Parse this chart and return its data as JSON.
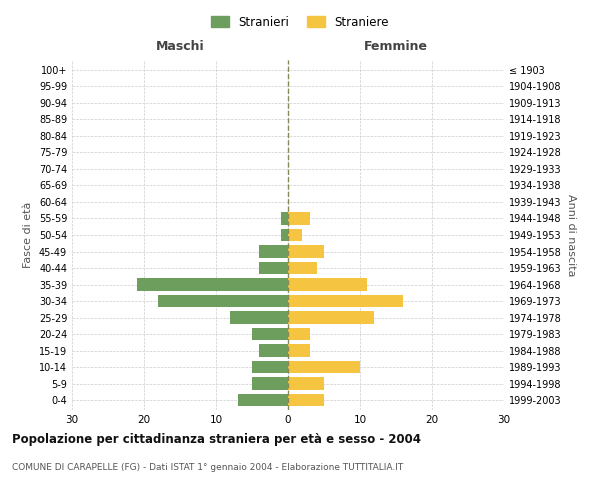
{
  "age_groups": [
    "0-4",
    "5-9",
    "10-14",
    "15-19",
    "20-24",
    "25-29",
    "30-34",
    "35-39",
    "40-44",
    "45-49",
    "50-54",
    "55-59",
    "60-64",
    "65-69",
    "70-74",
    "75-79",
    "80-84",
    "85-89",
    "90-94",
    "95-99",
    "100+"
  ],
  "birth_years": [
    "1999-2003",
    "1994-1998",
    "1989-1993",
    "1984-1988",
    "1979-1983",
    "1974-1978",
    "1969-1973",
    "1964-1968",
    "1959-1963",
    "1954-1958",
    "1949-1953",
    "1944-1948",
    "1939-1943",
    "1934-1938",
    "1929-1933",
    "1924-1928",
    "1919-1923",
    "1914-1918",
    "1909-1913",
    "1904-1908",
    "≤ 1903"
  ],
  "males": [
    7,
    5,
    5,
    4,
    5,
    8,
    18,
    21,
    4,
    4,
    1,
    1,
    0,
    0,
    0,
    0,
    0,
    0,
    0,
    0,
    0
  ],
  "females": [
    5,
    5,
    10,
    3,
    3,
    12,
    16,
    11,
    4,
    5,
    2,
    3,
    0,
    0,
    0,
    0,
    0,
    0,
    0,
    0,
    0
  ],
  "male_color": "#6e9e5e",
  "female_color": "#f5c542",
  "background_color": "#ffffff",
  "grid_color": "#cccccc",
  "xlim": 30,
  "title": "Popolazione per cittadinanza straniera per età e sesso - 2004",
  "subtitle": "COMUNE DI CARAPELLE (FG) - Dati ISTAT 1° gennaio 2004 - Elaborazione TUTTITALIA.IT",
  "xlabel_left": "Maschi",
  "xlabel_right": "Femmine",
  "ylabel_left": "Fasce di età",
  "ylabel_right": "Anni di nascita",
  "legend_male": "Stranieri",
  "legend_female": "Straniere",
  "xticks": [
    -30,
    -20,
    -10,
    0,
    10,
    20,
    30
  ],
  "xticklabels": [
    "30",
    "20",
    "10",
    "0",
    "10",
    "20",
    "30"
  ]
}
